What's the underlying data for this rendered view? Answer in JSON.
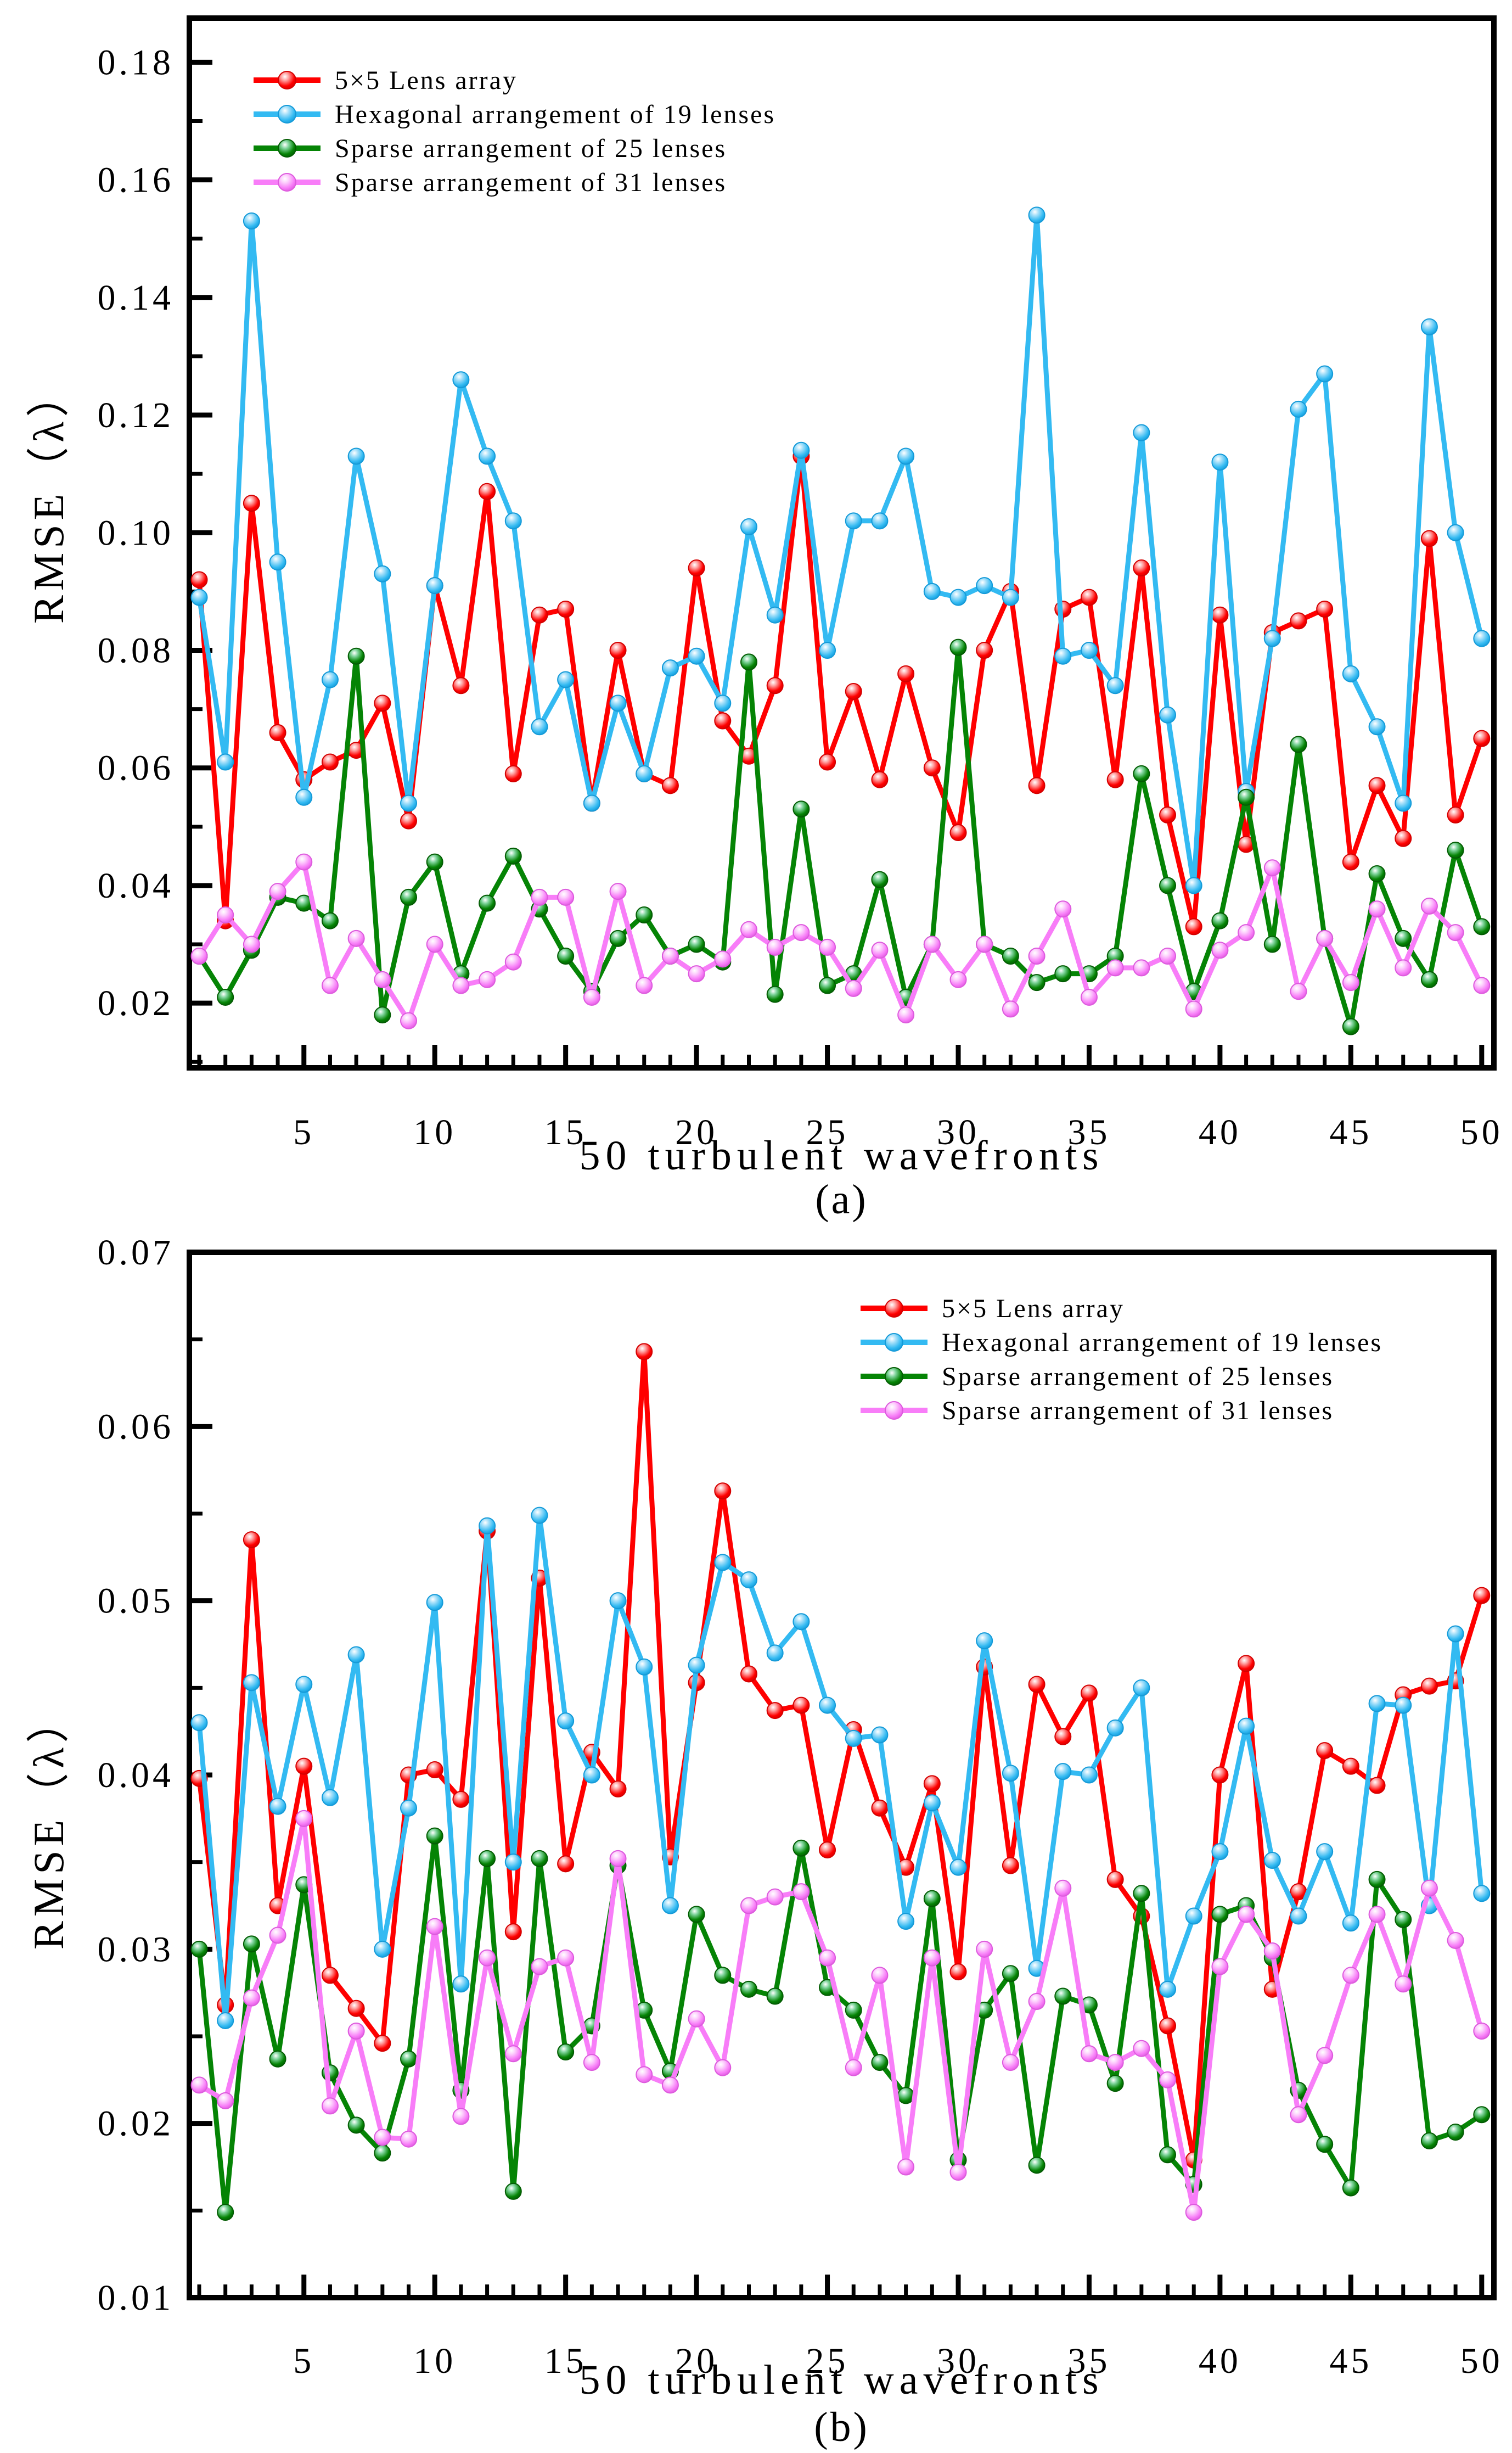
{
  "figure": {
    "background": "#ffffff",
    "text_color": "#000000"
  },
  "colors": {
    "red": "#ff0000",
    "blue": "#33baf2",
    "green": "#058405",
    "magenta": "#f87df8"
  },
  "chart_data": [
    {
      "id": "a",
      "type": "line",
      "caption": "(a)",
      "xlabel": "50 turbulent wavefronts",
      "ylabel": "RMSE（λ）",
      "xlim": [
        0.62,
        50.46
      ],
      "ylim": [
        0.009,
        0.1875
      ],
      "grid": "off",
      "legend_position": "top-left-inside",
      "x_major_ticks": [
        5,
        10,
        15,
        20,
        25,
        30,
        35,
        40,
        45,
        50
      ],
      "y_major_ticks": [
        "0.02",
        "0.04",
        "0.06",
        "0.08",
        "0.10",
        "0.12",
        "0.14",
        "0.16",
        "0.18"
      ],
      "x": [
        1,
        2,
        3,
        4,
        5,
        6,
        7,
        8,
        9,
        10,
        11,
        12,
        13,
        14,
        15,
        16,
        17,
        18,
        19,
        20,
        21,
        22,
        23,
        24,
        25,
        26,
        27,
        28,
        29,
        30,
        31,
        32,
        33,
        34,
        35,
        36,
        37,
        38,
        39,
        40,
        41,
        42,
        43,
        44,
        45,
        46,
        47,
        48,
        49,
        50
      ],
      "series": [
        {
          "name": "5×5 Lens array",
          "color_key": "red",
          "values": [
            0.092,
            0.034,
            0.105,
            0.066,
            0.058,
            0.061,
            0.063,
            0.071,
            0.051,
            0.091,
            0.074,
            0.107,
            0.059,
            0.086,
            0.087,
            0.054,
            0.08,
            0.059,
            0.057,
            0.094,
            0.068,
            0.062,
            0.074,
            0.113,
            0.061,
            0.073,
            0.058,
            0.076,
            0.06,
            0.049,
            0.08,
            0.09,
            0.057,
            0.087,
            0.089,
            0.058,
            0.094,
            0.052,
            0.033,
            0.086,
            0.047,
            0.083,
            0.085,
            0.087,
            0.044,
            0.057,
            0.048,
            0.099,
            0.052,
            0.065
          ]
        },
        {
          "name": "Hexagonal arrangement of 19 lenses",
          "color_key": "blue",
          "values": [
            0.089,
            0.061,
            0.153,
            0.095,
            0.055,
            0.075,
            0.113,
            0.093,
            0.054,
            0.091,
            0.126,
            0.113,
            0.102,
            0.067,
            0.075,
            0.054,
            0.071,
            0.059,
            0.077,
            0.079,
            0.071,
            0.101,
            0.086,
            0.114,
            0.08,
            0.102,
            0.102,
            0.113,
            0.09,
            0.089,
            0.091,
            0.089,
            0.154,
            0.079,
            0.08,
            0.074,
            0.117,
            0.069,
            0.04,
            0.112,
            0.056,
            0.082,
            0.121,
            0.127,
            0.076,
            0.067,
            0.054,
            0.135,
            0.1,
            0.082
          ]
        },
        {
          "name": "Sparse arrangement of 25 lenses",
          "color_key": "green",
          "values": [
            0.028,
            0.021,
            0.029,
            0.038,
            0.037,
            0.034,
            0.079,
            0.018,
            0.038,
            0.044,
            0.025,
            0.037,
            0.045,
            0.036,
            0.028,
            0.022,
            0.031,
            0.035,
            0.028,
            0.03,
            0.027,
            0.078,
            0.0215,
            0.053,
            0.023,
            0.025,
            0.041,
            0.021,
            0.03,
            0.0805,
            0.03,
            0.028,
            0.0235,
            0.025,
            0.025,
            0.028,
            0.059,
            0.04,
            0.022,
            0.034,
            0.055,
            0.03,
            0.064,
            0.031,
            0.016,
            0.042,
            0.031,
            0.024,
            0.046,
            0.033
          ]
        },
        {
          "name": "Sparse arrangement of 31 lenses",
          "color_key": "magenta",
          "values": [
            0.028,
            0.035,
            0.03,
            0.039,
            0.044,
            0.023,
            0.031,
            0.024,
            0.017,
            0.03,
            0.023,
            0.024,
            0.027,
            0.038,
            0.038,
            0.021,
            0.039,
            0.023,
            0.028,
            0.025,
            0.0275,
            0.0325,
            0.0295,
            0.032,
            0.0295,
            0.0225,
            0.029,
            0.018,
            0.03,
            0.024,
            0.03,
            0.019,
            0.028,
            0.036,
            0.021,
            0.026,
            0.026,
            0.028,
            0.019,
            0.029,
            0.032,
            0.043,
            0.022,
            0.031,
            0.0235,
            0.036,
            0.026,
            0.0365,
            0.032,
            0.023
          ]
        }
      ]
    },
    {
      "id": "b",
      "type": "line",
      "caption": "(b)",
      "xlabel": "50 turbulent wavefronts",
      "ylabel": "RMSE（λ）",
      "xlim": [
        0.62,
        50.46
      ],
      "ylim": [
        0.01,
        0.07
      ],
      "grid": "off",
      "legend_position": "top-right-inside",
      "x_major_ticks": [
        5,
        10,
        15,
        20,
        25,
        30,
        35,
        40,
        45,
        50
      ],
      "y_major_ticks": [
        "0.01",
        "0.02",
        "0.03",
        "0.04",
        "0.05",
        "0.06",
        "0.07"
      ],
      "x": [
        1,
        2,
        3,
        4,
        5,
        6,
        7,
        8,
        9,
        10,
        11,
        12,
        13,
        14,
        15,
        16,
        17,
        18,
        19,
        20,
        21,
        22,
        23,
        24,
        25,
        26,
        27,
        28,
        29,
        30,
        31,
        32,
        33,
        34,
        35,
        36,
        37,
        38,
        39,
        40,
        41,
        42,
        43,
        44,
        45,
        46,
        47,
        48,
        49,
        50
      ],
      "series": [
        {
          "name": "5×5 Lens array",
          "color_key": "red",
          "values": [
            0.0398,
            0.0268,
            0.0535,
            0.0325,
            0.0405,
            0.0285,
            0.0266,
            0.0246,
            0.04,
            0.0403,
            0.0386,
            0.054,
            0.031,
            0.0513,
            0.0349,
            0.0413,
            0.0392,
            0.0643,
            0.0353,
            0.0453,
            0.0563,
            0.0458,
            0.0437,
            0.044,
            0.0357,
            0.0426,
            0.0381,
            0.0347,
            0.0395,
            0.0287,
            0.0462,
            0.0348,
            0.0452,
            0.0422,
            0.0447,
            0.034,
            0.0319,
            0.0256,
            0.0179,
            0.04,
            0.0464,
            0.0277,
            0.0333,
            0.0414,
            0.0405,
            0.0394,
            0.0446,
            0.0451,
            0.0454,
            0.0503
          ]
        },
        {
          "name": "Hexagonal arrangement of 19 lenses",
          "color_key": "blue",
          "values": [
            0.043,
            0.0259,
            0.0453,
            0.0382,
            0.0452,
            0.0387,
            0.0469,
            0.03,
            0.0381,
            0.0499,
            0.028,
            0.0543,
            0.035,
            0.0549,
            0.0431,
            0.04,
            0.05,
            0.0462,
            0.0325,
            0.0463,
            0.0522,
            0.0512,
            0.047,
            0.0488,
            0.044,
            0.0421,
            0.0423,
            0.0316,
            0.0384,
            0.0347,
            0.0477,
            0.0401,
            0.0289,
            0.0402,
            0.04,
            0.0427,
            0.045,
            0.0277,
            0.0319,
            0.0356,
            0.0428,
            0.0351,
            0.0319,
            0.0356,
            0.0315,
            0.0441,
            0.044,
            0.0325,
            0.0481,
            0.0332
          ]
        },
        {
          "name": "Sparse arrangement of 25 lenses",
          "color_key": "green",
          "values": [
            0.03,
            0.0149,
            0.0303,
            0.0237,
            0.0337,
            0.0229,
            0.0199,
            0.0183,
            0.0237,
            0.0365,
            0.0219,
            0.0352,
            0.0161,
            0.0352,
            0.0241,
            0.0256,
            0.0348,
            0.0265,
            0.023,
            0.032,
            0.0285,
            0.0277,
            0.0273,
            0.0358,
            0.0278,
            0.0265,
            0.0235,
            0.0216,
            0.0329,
            0.0179,
            0.0265,
            0.0286,
            0.0176,
            0.0273,
            0.0268,
            0.0223,
            0.0332,
            0.0182,
            0.0165,
            0.032,
            0.0325,
            0.0295,
            0.0219,
            0.0188,
            0.0163,
            0.034,
            0.0317,
            0.019,
            0.0195,
            0.0205
          ]
        },
        {
          "name": "Sparse arrangement of 31 lenses",
          "color_key": "magenta",
          "values": [
            0.0222,
            0.0213,
            0.0272,
            0.0308,
            0.0375,
            0.021,
            0.0253,
            0.0192,
            0.0191,
            0.0313,
            0.0204,
            0.0295,
            0.024,
            0.029,
            0.0295,
            0.0235,
            0.0352,
            0.0228,
            0.0222,
            0.026,
            0.0232,
            0.0325,
            0.033,
            0.0333,
            0.0295,
            0.0232,
            0.0285,
            0.0175,
            0.0295,
            0.0172,
            0.03,
            0.0235,
            0.027,
            0.0335,
            0.024,
            0.0235,
            0.0243,
            0.0225,
            0.0149,
            0.029,
            0.032,
            0.0299,
            0.0205,
            0.0239,
            0.0285,
            0.032,
            0.028,
            0.0335,
            0.0305,
            0.0253
          ]
        }
      ]
    }
  ]
}
